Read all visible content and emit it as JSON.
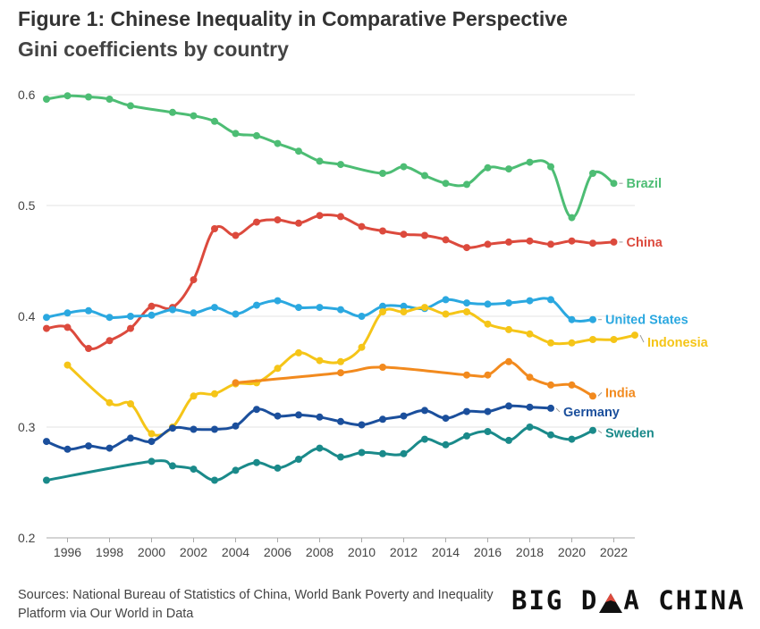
{
  "header": {
    "title": "Figure 1: Chinese Inequality in Comparative Perspective",
    "subtitle": "Gini coefficients by country"
  },
  "footer": {
    "sources": "Sources: National Bureau of Statistics of China, World Bank Poverty and Inequality Platform via Our World in Data",
    "brand_left": "BIG D",
    "brand_right": "A CHINA"
  },
  "chart_data": {
    "type": "line",
    "title": "Figure 1: Chinese Inequality in Comparative Perspective",
    "subtitle": "Gini coefficients by country",
    "xlim": [
      1995,
      2023
    ],
    "ylim": [
      0.2,
      0.6
    ],
    "x_ticks": [
      "1996",
      "1998",
      "2000",
      "2002",
      "2004",
      "2006",
      "2008",
      "2010",
      "2012",
      "2014",
      "2016",
      "2018",
      "2020",
      "2022"
    ],
    "y_ticks": [
      "0.2",
      "0.3",
      "0.4",
      "0.5",
      "0.6"
    ],
    "grid": "horizontal",
    "legend": "direct labels at line ends",
    "series": [
      {
        "name": "Brazil",
        "color": "#4dbd74",
        "points": [
          [
            1995,
            0.596
          ],
          [
            1996,
            0.599
          ],
          [
            1997,
            0.598
          ],
          [
            1998,
            0.596
          ],
          [
            1999,
            0.59
          ],
          [
            2001,
            0.584
          ],
          [
            2002,
            0.581
          ],
          [
            2003,
            0.576
          ],
          [
            2004,
            0.565
          ],
          [
            2005,
            0.563
          ],
          [
            2006,
            0.556
          ],
          [
            2007,
            0.549
          ],
          [
            2008,
            0.54
          ],
          [
            2009,
            0.537
          ],
          [
            2011,
            0.529
          ],
          [
            2012,
            0.535
          ],
          [
            2013,
            0.527
          ],
          [
            2014,
            0.52
          ],
          [
            2015,
            0.519
          ],
          [
            2016,
            0.534
          ],
          [
            2017,
            0.533
          ],
          [
            2018,
            0.539
          ],
          [
            2019,
            0.535
          ],
          [
            2020,
            0.489
          ],
          [
            2021,
            0.529
          ],
          [
            2022,
            0.52
          ]
        ]
      },
      {
        "name": "China",
        "color": "#dc4a3d",
        "points": [
          [
            1995,
            0.389
          ],
          [
            1996,
            0.39
          ],
          [
            1997,
            0.371
          ],
          [
            1998,
            0.378
          ],
          [
            1999,
            0.389
          ],
          [
            2000,
            0.409
          ],
          [
            2001,
            0.408
          ],
          [
            2002,
            0.433
          ],
          [
            2003,
            0.479
          ],
          [
            2004,
            0.473
          ],
          [
            2005,
            0.485
          ],
          [
            2006,
            0.487
          ],
          [
            2007,
            0.484
          ],
          [
            2008,
            0.491
          ],
          [
            2009,
            0.49
          ],
          [
            2010,
            0.481
          ],
          [
            2011,
            0.477
          ],
          [
            2012,
            0.474
          ],
          [
            2013,
            0.473
          ],
          [
            2014,
            0.469
          ],
          [
            2015,
            0.462
          ],
          [
            2016,
            0.465
          ],
          [
            2017,
            0.467
          ],
          [
            2018,
            0.468
          ],
          [
            2019,
            0.465
          ],
          [
            2020,
            0.468
          ],
          [
            2021,
            0.466
          ],
          [
            2022,
            0.467
          ]
        ]
      },
      {
        "name": "United States",
        "color": "#2ba8e0",
        "points": [
          [
            1995,
            0.399
          ],
          [
            1996,
            0.403
          ],
          [
            1997,
            0.405
          ],
          [
            1998,
            0.399
          ],
          [
            1999,
            0.4
          ],
          [
            2000,
            0.401
          ],
          [
            2001,
            0.406
          ],
          [
            2002,
            0.403
          ],
          [
            2003,
            0.408
          ],
          [
            2004,
            0.402
          ],
          [
            2005,
            0.41
          ],
          [
            2006,
            0.414
          ],
          [
            2007,
            0.408
          ],
          [
            2008,
            0.408
          ],
          [
            2009,
            0.406
          ],
          [
            2010,
            0.4
          ],
          [
            2011,
            0.409
          ],
          [
            2012,
            0.409
          ],
          [
            2013,
            0.407
          ],
          [
            2014,
            0.415
          ],
          [
            2015,
            0.412
          ],
          [
            2016,
            0.411
          ],
          [
            2017,
            0.412
          ],
          [
            2018,
            0.414
          ],
          [
            2019,
            0.415
          ],
          [
            2020,
            0.397
          ],
          [
            2021,
            0.397
          ]
        ]
      },
      {
        "name": "Indonesia",
        "color": "#f5c518",
        "points": [
          [
            1996,
            0.356
          ],
          [
            1998,
            0.322
          ],
          [
            1999,
            0.321
          ],
          [
            2000,
            0.294
          ],
          [
            2001,
            0.3
          ],
          [
            2002,
            0.328
          ],
          [
            2003,
            0.33
          ],
          [
            2004,
            0.339
          ],
          [
            2005,
            0.34
          ],
          [
            2006,
            0.353
          ],
          [
            2007,
            0.367
          ],
          [
            2008,
            0.36
          ],
          [
            2009,
            0.359
          ],
          [
            2010,
            0.372
          ],
          [
            2011,
            0.404
          ],
          [
            2012,
            0.404
          ],
          [
            2013,
            0.408
          ],
          [
            2014,
            0.402
          ],
          [
            2015,
            0.404
          ],
          [
            2016,
            0.393
          ],
          [
            2017,
            0.388
          ],
          [
            2018,
            0.384
          ],
          [
            2019,
            0.376
          ],
          [
            2020,
            0.376
          ],
          [
            2021,
            0.379
          ],
          [
            2022,
            0.379
          ],
          [
            2023,
            0.383
          ]
        ]
      },
      {
        "name": "India",
        "color": "#f28a1e",
        "points": [
          [
            2004,
            0.34
          ],
          [
            2009,
            0.349
          ],
          [
            2011,
            0.354
          ],
          [
            2015,
            0.347
          ],
          [
            2016,
            0.347
          ],
          [
            2017,
            0.359
          ],
          [
            2018,
            0.345
          ],
          [
            2019,
            0.338
          ],
          [
            2020,
            0.338
          ],
          [
            2021,
            0.328
          ]
        ]
      },
      {
        "name": "Germany",
        "color": "#1b4f9c",
        "points": [
          [
            1995,
            0.287
          ],
          [
            1996,
            0.28
          ],
          [
            1997,
            0.283
          ],
          [
            1998,
            0.281
          ],
          [
            1999,
            0.29
          ],
          [
            2000,
            0.287
          ],
          [
            2001,
            0.299
          ],
          [
            2002,
            0.298
          ],
          [
            2003,
            0.298
          ],
          [
            2004,
            0.301
          ],
          [
            2005,
            0.316
          ],
          [
            2006,
            0.31
          ],
          [
            2007,
            0.311
          ],
          [
            2008,
            0.309
          ],
          [
            2009,
            0.305
          ],
          [
            2010,
            0.302
          ],
          [
            2011,
            0.307
          ],
          [
            2012,
            0.31
          ],
          [
            2013,
            0.315
          ],
          [
            2014,
            0.308
          ],
          [
            2015,
            0.314
          ],
          [
            2016,
            0.314
          ],
          [
            2017,
            0.319
          ],
          [
            2018,
            0.318
          ],
          [
            2019,
            0.317
          ]
        ]
      },
      {
        "name": "Sweden",
        "color": "#1a8a8a",
        "points": [
          [
            1995,
            0.252
          ],
          [
            2000,
            0.269
          ],
          [
            2001,
            0.265
          ],
          [
            2002,
            0.262
          ],
          [
            2003,
            0.252
          ],
          [
            2004,
            0.261
          ],
          [
            2005,
            0.268
          ],
          [
            2006,
            0.263
          ],
          [
            2007,
            0.271
          ],
          [
            2008,
            0.281
          ],
          [
            2009,
            0.273
          ],
          [
            2010,
            0.277
          ],
          [
            2011,
            0.276
          ],
          [
            2012,
            0.276
          ],
          [
            2013,
            0.289
          ],
          [
            2014,
            0.284
          ],
          [
            2015,
            0.292
          ],
          [
            2016,
            0.296
          ],
          [
            2017,
            0.288
          ],
          [
            2018,
            0.3
          ],
          [
            2019,
            0.293
          ],
          [
            2020,
            0.289
          ],
          [
            2021,
            0.297
          ]
        ]
      }
    ]
  }
}
